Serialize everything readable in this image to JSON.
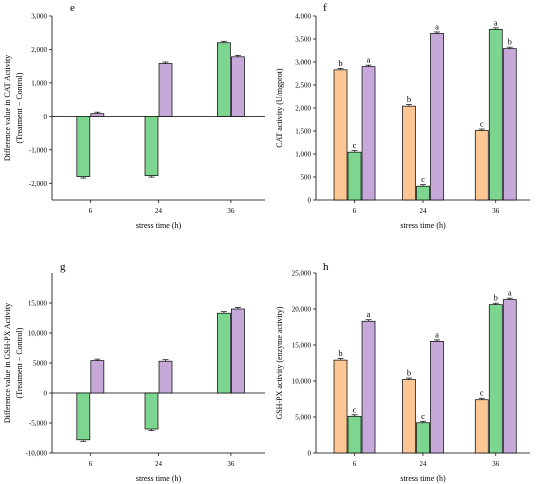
{
  "colors": {
    "orange": "#fcc794",
    "green": "#7dd68f",
    "purple": "#c6a9da",
    "error": "#000000"
  },
  "chart_data": [
    {
      "panel": "e",
      "type": "bar",
      "xlabel": "stress time (h)",
      "ylabel": [
        "Difference value in CAT Activity",
        "(Treatment − Control)"
      ],
      "categories": [
        "6",
        "24",
        "36"
      ],
      "ylim": [
        -2500,
        3000
      ],
      "yticks": [
        -2000,
        -1000,
        0,
        1000,
        2000,
        3000
      ],
      "ytick_labels": [
        "-2,000",
        "-1,000",
        "0",
        "1,000",
        "2,000",
        "3,000"
      ],
      "series": [
        {
          "color": "green",
          "values": [
            -1800,
            -1770,
            2200
          ]
        },
        {
          "color": "purple",
          "values": [
            80,
            1580,
            1780
          ]
        }
      ]
    },
    {
      "panel": "f",
      "type": "bar",
      "xlabel": "stress time (h)",
      "ylabel": [
        "CAT activity (U/mgprot)"
      ],
      "categories": [
        "6",
        "24",
        "36"
      ],
      "ylim": [
        0,
        4000
      ],
      "yticks": [
        0,
        500,
        1000,
        1500,
        2000,
        2500,
        3000,
        3500,
        4000
      ],
      "ytick_labels": [
        "0",
        "500",
        "1,000",
        "1,500",
        "2,000",
        "2,500",
        "3,000",
        "3,500",
        "4,000"
      ],
      "series": [
        {
          "color": "orange",
          "values": [
            2830,
            2040,
            1510
          ],
          "labels": [
            "b",
            "b",
            "c"
          ]
        },
        {
          "color": "green",
          "values": [
            1040,
            300,
            3710
          ],
          "labels": [
            "c",
            "c",
            "a"
          ]
        },
        {
          "color": "purple",
          "values": [
            2900,
            3620,
            3290
          ],
          "labels": [
            "a",
            "a",
            "b"
          ]
        }
      ]
    },
    {
      "panel": "g",
      "type": "bar",
      "xlabel": "stress time (h)",
      "ylabel": [
        "Difference value in GSH-PX Activity",
        "(Treatment − Control)"
      ],
      "categories": [
        "6",
        "24",
        "36"
      ],
      "ylim": [
        -10000,
        20000
      ],
      "yticks": [
        -10000,
        -5000,
        0,
        5000,
        10000,
        15000
      ],
      "ytick_labels": [
        "-10,000",
        "-5,000",
        "0",
        "5000",
        "10,000",
        "15,000"
      ],
      "series": [
        {
          "color": "green",
          "values": [
            -7800,
            -6000,
            13300
          ]
        },
        {
          "color": "purple",
          "values": [
            5400,
            5300,
            14000
          ]
        }
      ]
    },
    {
      "panel": "h",
      "type": "bar",
      "xlabel": "stress time (h)",
      "ylabel": [
        "GSH-PX activity (enzyme activity)"
      ],
      "categories": [
        "6",
        "24",
        "36"
      ],
      "ylim": [
        0,
        25000
      ],
      "yticks": [
        0,
        5000,
        10000,
        15000,
        20000,
        25000
      ],
      "ytick_labels": [
        "0",
        "5,000",
        "10,000",
        "15,000",
        "20,000",
        "25,000"
      ],
      "series": [
        {
          "color": "orange",
          "values": [
            12900,
            10200,
            7400
          ],
          "labels": [
            "b",
            "b",
            "c"
          ]
        },
        {
          "color": "green",
          "values": [
            5100,
            4200,
            20600
          ],
          "labels": [
            "c",
            "c",
            "b"
          ]
        },
        {
          "color": "purple",
          "values": [
            18300,
            15500,
            21300
          ],
          "labels": [
            "a",
            "a",
            "a"
          ]
        }
      ]
    }
  ]
}
